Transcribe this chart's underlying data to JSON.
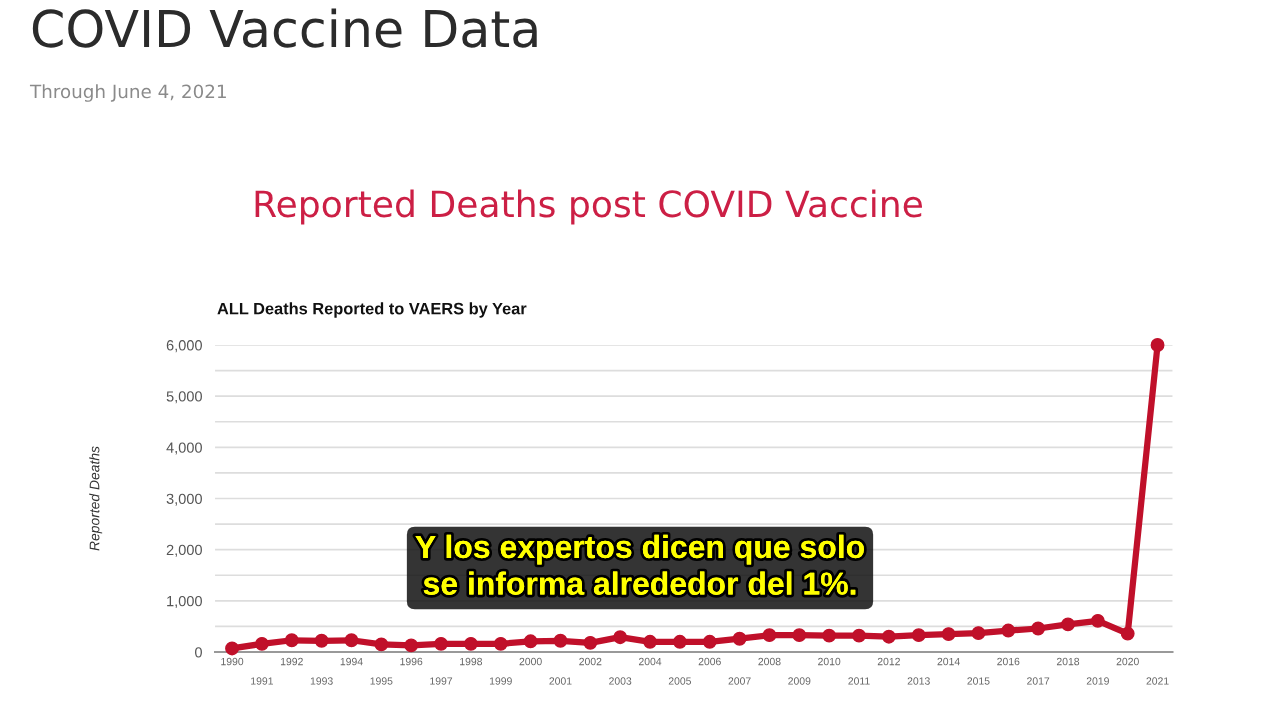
{
  "chart_data": {
    "type": "line",
    "title": "COVID Vaccine Data",
    "subtitle": "Through June 4, 2021",
    "annotations": [
      "Reported Deaths post COVID Vaccine",
      "ALL Deaths Reported to VAERS by Year",
      "Y los expertos dicen que solo\nse informa alrededor del 1%."
    ],
    "ylabel": "Reported Deaths",
    "categories": [
      "1990",
      "1991",
      "1992",
      "1993",
      "1994",
      "1995",
      "1996",
      "1997",
      "1998",
      "1999",
      "2000",
      "2001",
      "2002",
      "2003",
      "2004",
      "2005",
      "2006",
      "2007",
      "2008",
      "2009",
      "2010",
      "2011",
      "2012",
      "2013",
      "2014",
      "2015",
      "2016",
      "2017",
      "2018",
      "2019",
      "2020",
      "2021"
    ],
    "series": [
      {
        "color": "#c0102a",
        "values": [
          70,
          160,
          230,
          220,
          230,
          150,
          130,
          160,
          160,
          160,
          210,
          220,
          180,
          290,
          200,
          200,
          200,
          260,
          330,
          330,
          320,
          320,
          300,
          330,
          350,
          370,
          420,
          460,
          540,
          610,
          360,
          6000
        ]
      }
    ],
    "ylim": [
      0,
      6000
    ],
    "yticks": [
      0,
      {
        "value": 500,
        "label": null
      },
      {
        "value": 1000,
        "label": "1,000"
      },
      {
        "value": 1500,
        "label": null
      },
      {
        "value": 2000,
        "label": "2,000"
      },
      {
        "value": 2500,
        "label": null
      },
      {
        "value": 3000,
        "label": "3,000"
      },
      {
        "value": 3500,
        "label": null
      },
      {
        "value": 4000,
        "label": "4,000"
      },
      {
        "value": 4500,
        "label": null
      },
      {
        "value": 5000,
        "label": "5,000"
      },
      {
        "value": 5500,
        "label": null
      },
      {
        "value": 6000,
        "label": "6,000"
      }
    ],
    "grid": "y",
    "marker": "circle",
    "line_style": "solid"
  }
}
